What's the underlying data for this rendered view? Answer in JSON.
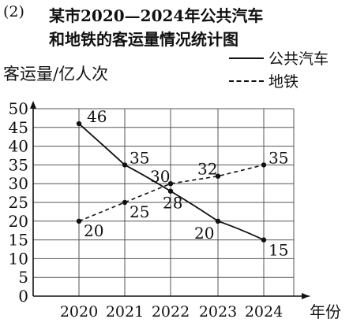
{
  "title": {
    "number": "(2)",
    "line1": "某市2020—2024年公共汽车",
    "line2": "和地铁的客运量情况统计图"
  },
  "chart_data": {
    "type": "line",
    "title": "某市2020—2024年公共汽车和地铁的客运量情况统计图",
    "xlabel": "年份",
    "ylabel": "客运量/亿人次",
    "categories": [
      "2020",
      "2021",
      "2022",
      "2023",
      "2024"
    ],
    "ylim": [
      0,
      50
    ],
    "ytick_step": 5,
    "grid": true,
    "legend_position": "top-right",
    "series": [
      {
        "name": "公共汽车",
        "style": "solid",
        "values": [
          46,
          35,
          28,
          20,
          15
        ]
      },
      {
        "name": "地铁",
        "style": "dashed",
        "values": [
          20,
          25,
          30,
          32,
          35
        ]
      }
    ]
  }
}
